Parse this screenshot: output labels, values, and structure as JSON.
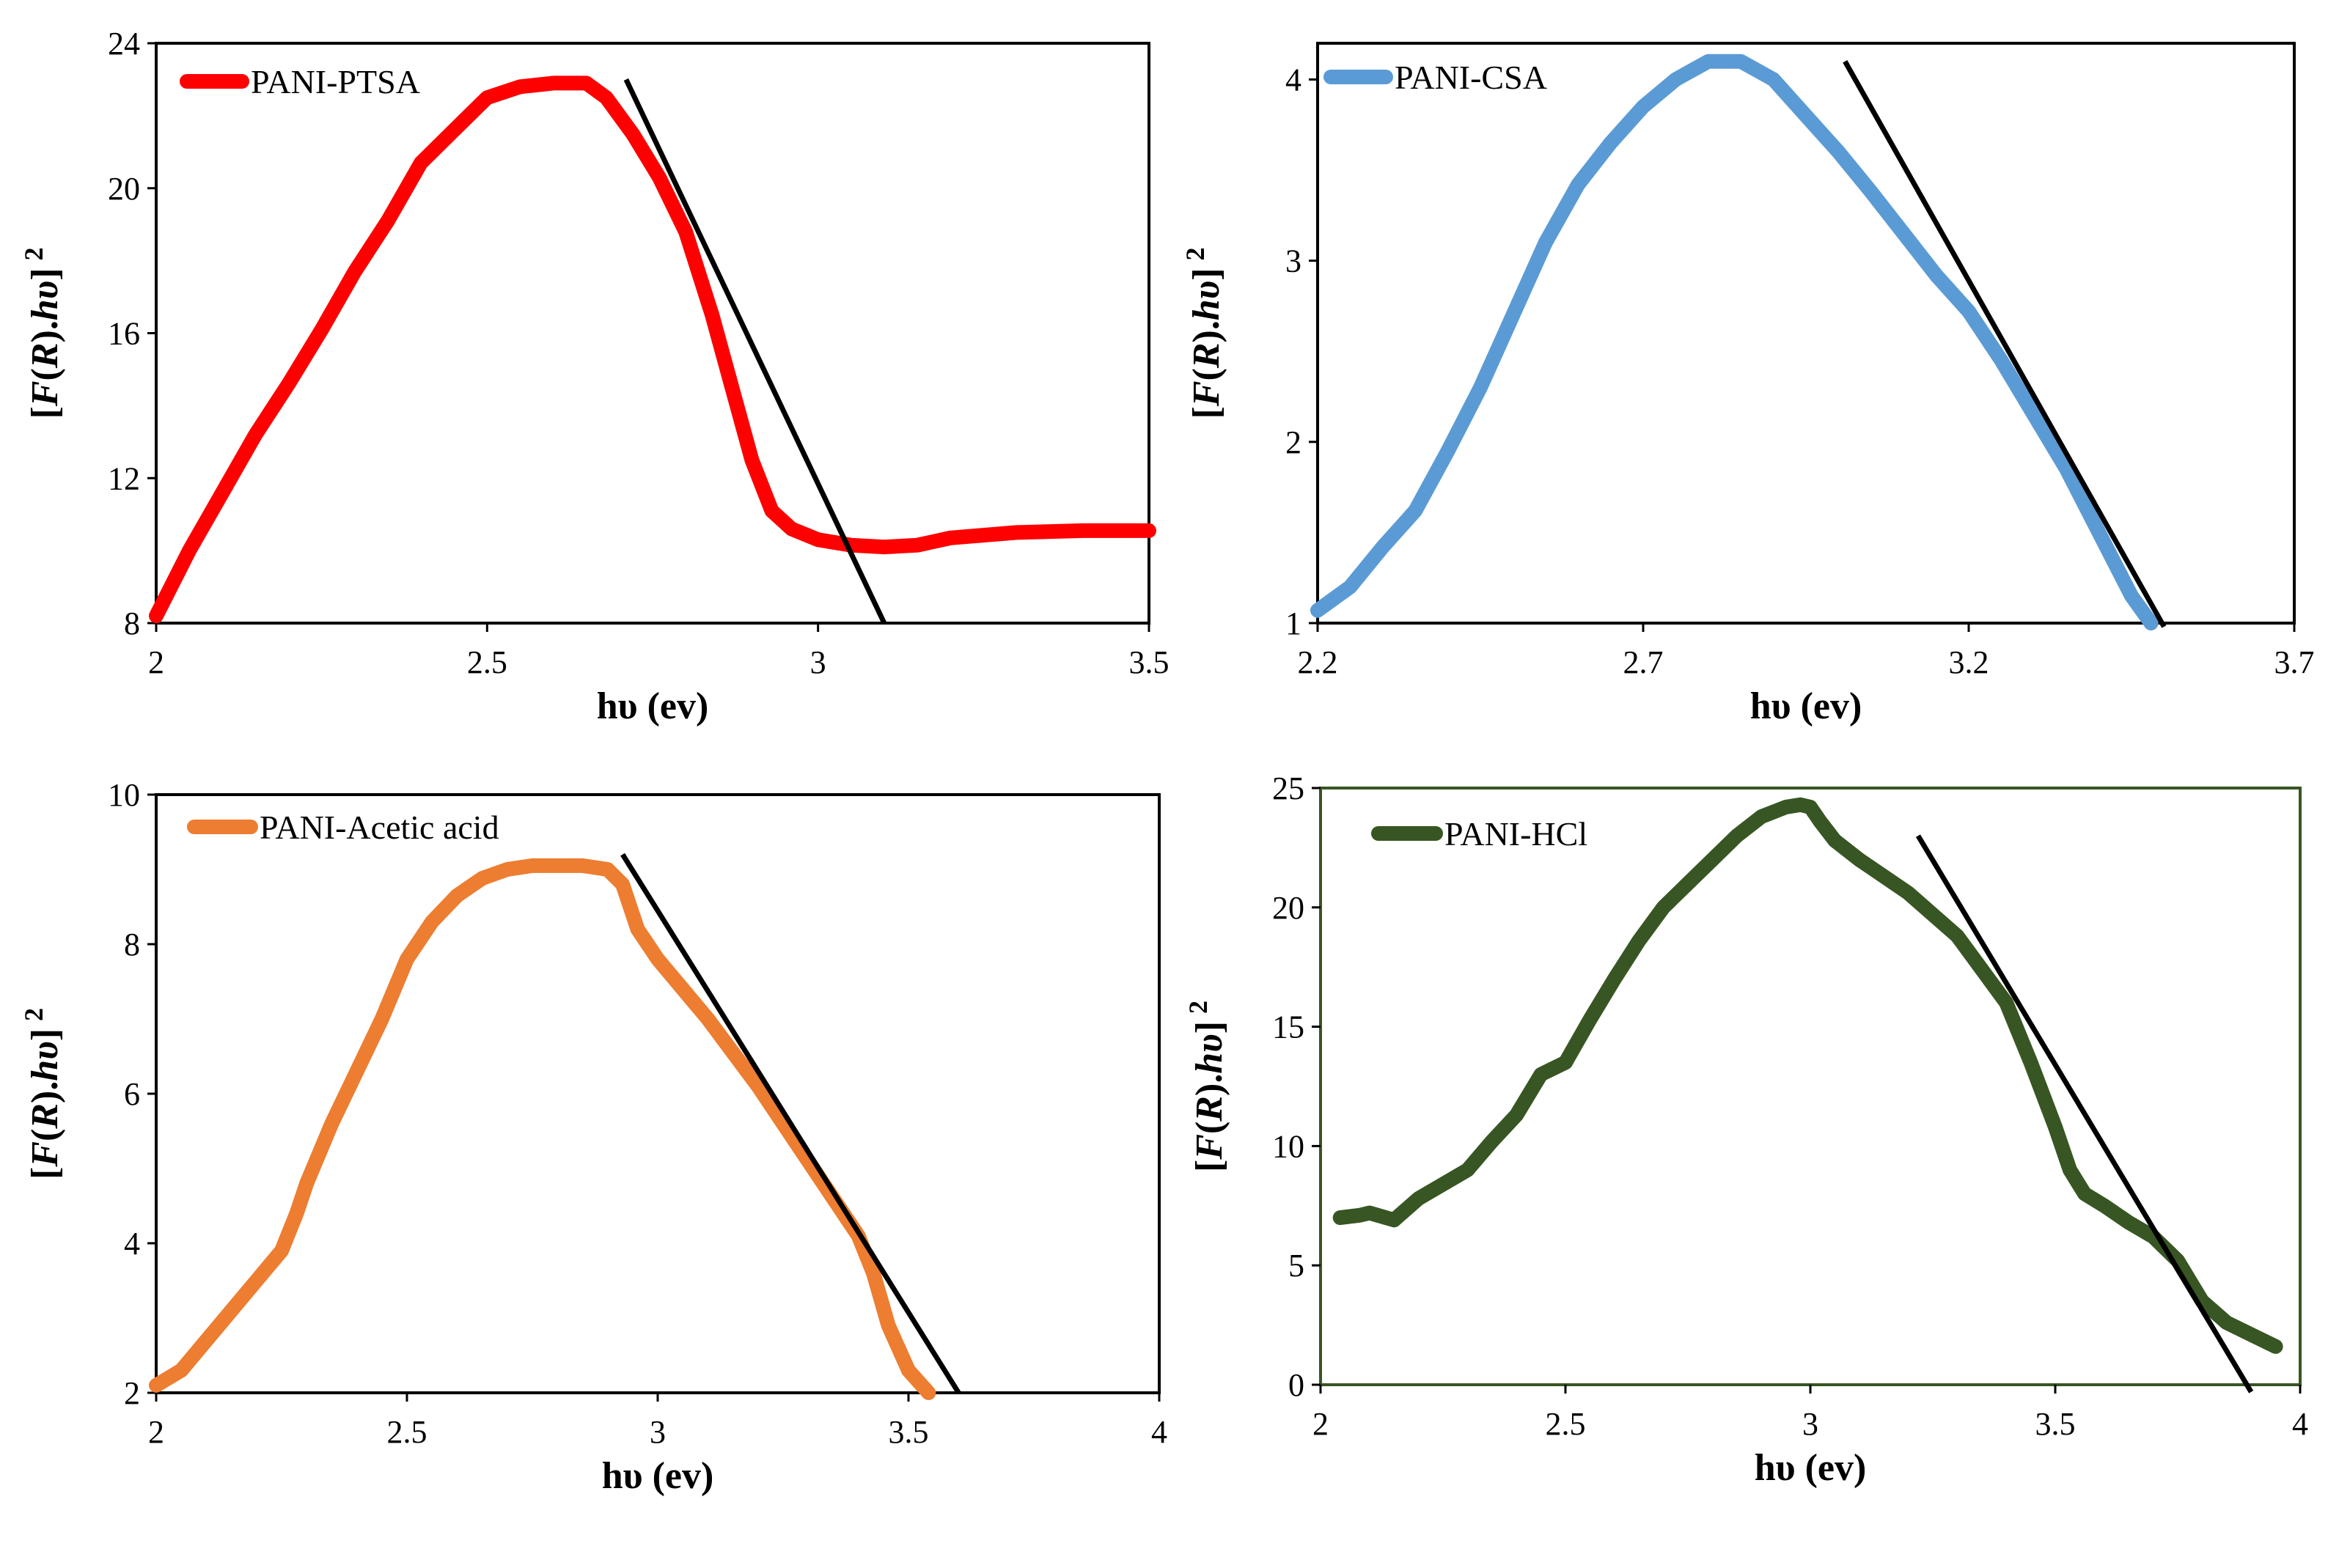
{
  "chart_data": [
    {
      "type": "line",
      "legend": "PANI-PTSA",
      "color": "#ff0000",
      "frame_color": "#000000",
      "xlabel": "hυ (ev)",
      "ylabel_parts": [
        "[",
        "F",
        "(",
        "R",
        ").",
        "hυ",
        "]",
        "2"
      ],
      "xlim": [
        2,
        3.5
      ],
      "ylim": [
        8,
        24
      ],
      "xticks": [
        "2",
        "2.5",
        "3",
        "3.5"
      ],
      "yticks": [
        "8",
        "12",
        "16",
        "20",
        "24"
      ],
      "x": [
        2.0,
        2.05,
        2.1,
        2.15,
        2.2,
        2.25,
        2.3,
        2.35,
        2.4,
        2.45,
        2.5,
        2.55,
        2.6,
        2.65,
        2.68,
        2.72,
        2.76,
        2.8,
        2.84,
        2.87,
        2.9,
        2.93,
        2.96,
        3.0,
        3.05,
        3.1,
        3.15,
        3.2,
        3.3,
        3.4,
        3.5
      ],
      "values": [
        8.2,
        10.0,
        11.6,
        13.2,
        14.6,
        16.1,
        17.7,
        19.1,
        20.7,
        21.6,
        22.5,
        22.8,
        22.9,
        22.9,
        22.5,
        21.5,
        20.3,
        18.8,
        16.5,
        14.5,
        12.5,
        11.1,
        10.6,
        10.3,
        10.15,
        10.1,
        10.15,
        10.35,
        10.5,
        10.55,
        10.55
      ],
      "tangent": {
        "x": [
          2.71,
          3.1
        ],
        "y": [
          23.0,
          8.0
        ]
      }
    },
    {
      "type": "line",
      "legend": "PANI-CSA",
      "color": "#5b9bd5",
      "frame_color": "#000000",
      "xlabel": "hυ (ev)",
      "ylabel_parts": [
        "[",
        "F",
        "(",
        "R",
        ").",
        "hυ",
        "]",
        "2"
      ],
      "xlim": [
        2.2,
        3.7
      ],
      "ylim": [
        1,
        4.2
      ],
      "xticks": [
        "2.2",
        "2.7",
        "3.2",
        "3.7"
      ],
      "yticks": [
        "1",
        "2",
        "3",
        "4"
      ],
      "x": [
        2.2,
        2.25,
        2.3,
        2.35,
        2.4,
        2.45,
        2.5,
        2.55,
        2.6,
        2.65,
        2.7,
        2.75,
        2.8,
        2.85,
        2.9,
        2.95,
        3.0,
        3.05,
        3.1,
        3.15,
        3.2,
        3.25,
        3.3,
        3.35,
        3.4,
        3.45,
        3.48
      ],
      "values": [
        1.07,
        1.2,
        1.42,
        1.62,
        1.95,
        2.3,
        2.7,
        3.1,
        3.42,
        3.65,
        3.85,
        4.0,
        4.1,
        4.1,
        4.0,
        3.8,
        3.6,
        3.38,
        3.15,
        2.92,
        2.72,
        2.45,
        2.15,
        1.85,
        1.5,
        1.15,
        1.0
      ],
      "tangent": {
        "x": [
          3.01,
          3.5
        ],
        "y": [
          4.1,
          0.98
        ]
      }
    },
    {
      "type": "line",
      "legend": "PANI-Acetic acid",
      "color": "#ed7d31",
      "frame_color": "#000000",
      "xlabel": "hυ (ev)",
      "ylabel_parts": [
        "[",
        "F",
        "(",
        "R",
        ").",
        "hυ",
        "]",
        "2"
      ],
      "xlim": [
        2,
        4
      ],
      "ylim": [
        2,
        10
      ],
      "xticks": [
        "2",
        "2.5",
        "3",
        "3.5",
        "4"
      ],
      "yticks": [
        "2",
        "4",
        "6",
        "8",
        "10"
      ],
      "x": [
        2.0,
        2.05,
        2.1,
        2.15,
        2.2,
        2.25,
        2.28,
        2.3,
        2.35,
        2.4,
        2.45,
        2.5,
        2.55,
        2.6,
        2.65,
        2.7,
        2.75,
        2.8,
        2.85,
        2.9,
        2.93,
        2.96,
        3.0,
        3.05,
        3.1,
        3.15,
        3.2,
        3.25,
        3.3,
        3.35,
        3.4,
        3.43,
        3.46,
        3.5,
        3.54
      ],
      "values": [
        2.1,
        2.3,
        2.7,
        3.1,
        3.5,
        3.9,
        4.4,
        4.8,
        5.6,
        6.3,
        7.0,
        7.8,
        8.3,
        8.65,
        8.88,
        9.0,
        9.05,
        9.05,
        9.05,
        9.0,
        8.8,
        8.2,
        7.8,
        7.4,
        7.0,
        6.55,
        6.1,
        5.6,
        5.1,
        4.6,
        4.1,
        3.6,
        2.9,
        2.3,
        2.0
      ],
      "tangent": {
        "x": [
          2.93,
          3.6
        ],
        "y": [
          9.2,
          2.0
        ]
      }
    },
    {
      "type": "line",
      "legend": "PANI-HCl",
      "color": "#375623",
      "frame_color": "#375623",
      "xlabel": "hυ (ev)",
      "ylabel_parts": [
        "[",
        "F",
        "(",
        "R",
        ").",
        "hυ",
        "]",
        "2"
      ],
      "xlim": [
        2,
        4
      ],
      "ylim": [
        0,
        25
      ],
      "xticks": [
        "2",
        "2.5",
        "3",
        "3.5",
        "4"
      ],
      "yticks": [
        "0",
        "5",
        "10",
        "15",
        "20",
        "25"
      ],
      "x": [
        2.04,
        2.08,
        2.1,
        2.15,
        2.2,
        2.25,
        2.3,
        2.35,
        2.4,
        2.45,
        2.5,
        2.55,
        2.6,
        2.65,
        2.7,
        2.75,
        2.8,
        2.85,
        2.9,
        2.95,
        2.98,
        3.0,
        3.02,
        3.05,
        3.1,
        3.2,
        3.3,
        3.4,
        3.45,
        3.5,
        3.53,
        3.56,
        3.6,
        3.65,
        3.7,
        3.75,
        3.8,
        3.85,
        3.9,
        3.95
      ],
      "values": [
        7.0,
        7.1,
        7.2,
        6.9,
        7.8,
        8.4,
        9.0,
        10.2,
        11.3,
        13.0,
        13.5,
        15.3,
        17.0,
        18.6,
        20.0,
        21.0,
        22.0,
        23.0,
        23.8,
        24.2,
        24.3,
        24.2,
        23.6,
        22.8,
        22.0,
        20.6,
        18.8,
        16.0,
        13.5,
        10.8,
        9.0,
        8.0,
        7.5,
        6.8,
        6.2,
        5.2,
        3.5,
        2.6,
        2.1,
        1.6
      ],
      "tangent": {
        "x": [
          3.22,
          3.9
        ],
        "y": [
          23.0,
          -0.3
        ]
      }
    }
  ]
}
